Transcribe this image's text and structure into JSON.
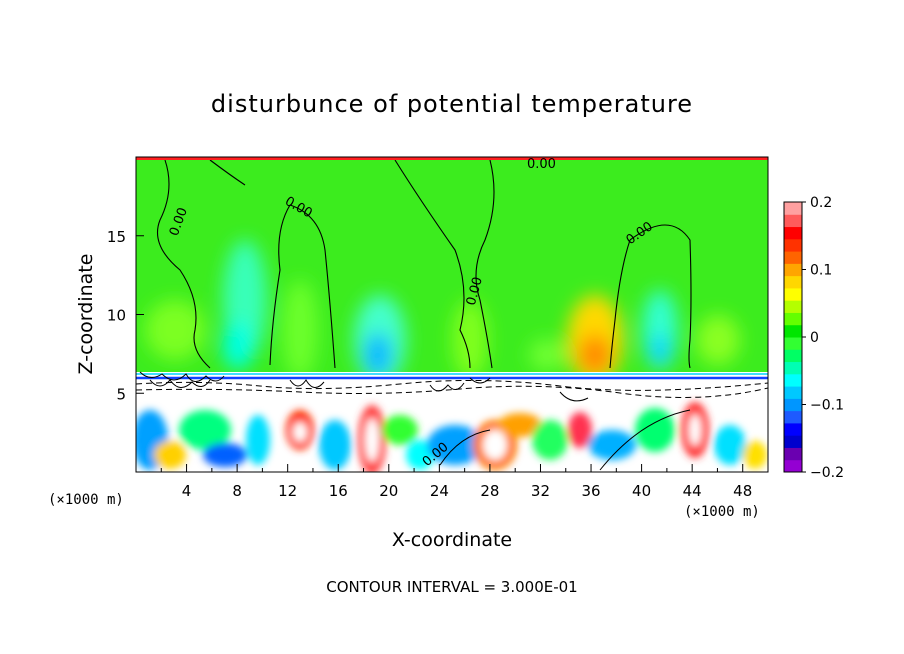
{
  "chart_data": {
    "type": "heatmap",
    "title": "disturbunce of potential temperature",
    "xlabel": "X-coordinate",
    "ylabel": "Z-coordinate",
    "x_unit": "(×1000 m)",
    "z_unit": "(×1000 m)",
    "xlim": [
      0,
      50
    ],
    "ylim": [
      0,
      20
    ],
    "x_ticks": [
      "4",
      "8",
      "12",
      "16",
      "20",
      "24",
      "28",
      "32",
      "36",
      "40",
      "44",
      "48"
    ],
    "y_ticks": [
      "5",
      "10",
      "15"
    ],
    "contour_interval_label": "CONTOUR INTERVAL = 3.000E-01",
    "colorbar": {
      "range": [
        -0.2,
        0.2
      ],
      "tick_labels": [
        "0.2",
        "0.1",
        "0",
        "−0.1",
        "−0.2"
      ],
      "colors": [
        "#9400d3",
        "#6a00b0",
        "#0000cd",
        "#0000ff",
        "#1e5aff",
        "#0096ff",
        "#00c8ff",
        "#00ffff",
        "#00ffb4",
        "#00ff64",
        "#32ff32",
        "#00e600",
        "#64ff00",
        "#b4ff00",
        "#ffff00",
        "#ffd700",
        "#ffa500",
        "#ff6400",
        "#ff3200",
        "#ff0000",
        "#ff5a5a",
        "#ffa0a0"
      ]
    },
    "contour_labels": [
      "0.00",
      "0.00",
      "0.00",
      "0.00",
      "0.00",
      "0.00"
    ]
  }
}
